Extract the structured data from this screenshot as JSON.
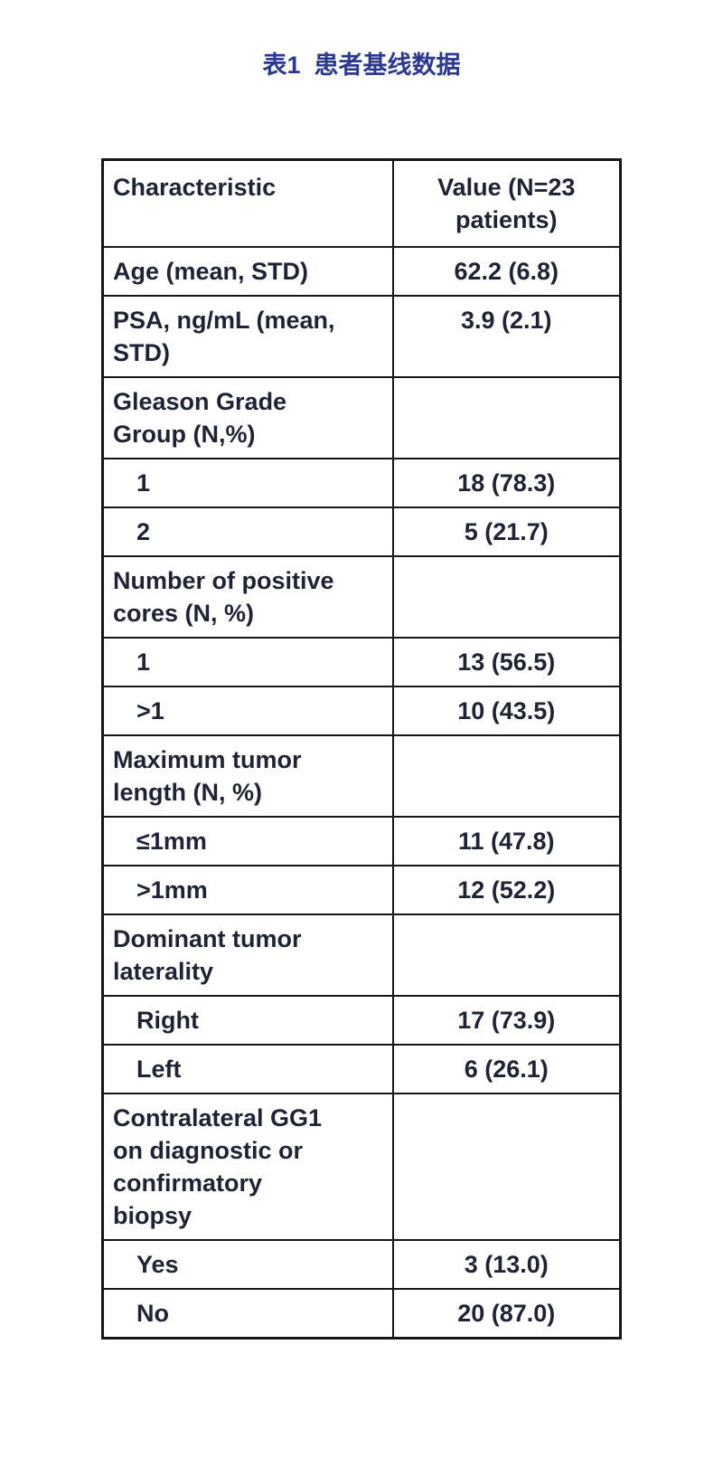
{
  "page": {
    "title": "表1  患者基线数据",
    "title_color": "#2b3a90",
    "background_color": "#ffffff",
    "text_color": "#1e2336",
    "border_color": "#161616"
  },
  "table": {
    "header": [
      "Characteristic",
      "Value (N=23 patients)"
    ],
    "rows": [
      {
        "label": "Age (mean, STD)",
        "value": "62.2 (6.8)"
      },
      {
        "label": "PSA, ng/mL (mean, STD)",
        "value": "3.9 (2.1)"
      },
      {
        "label": "Gleason Grade Group (N,%)",
        "value": ""
      },
      {
        "label": "1",
        "value": "18 (78.3)"
      },
      {
        "label": "2",
        "value": "5 (21.7)"
      },
      {
        "label": "Number of positive cores (N, %)",
        "value": ""
      },
      {
        "label": "1",
        "value": "13 (56.5)"
      },
      {
        "label": ">1",
        "value": "10 (43.5)"
      },
      {
        "label": "Maximum tumor length (N, %)",
        "value": ""
      },
      {
        "label": "≤1mm",
        "value": "11 (47.8)"
      },
      {
        "label": ">1mm",
        "value": "12 (52.2)"
      },
      {
        "label": "Dominant tumor laterality",
        "value": ""
      },
      {
        "label": "Right",
        "value": "17 (73.9)"
      },
      {
        "label": "Left",
        "value": "6 (26.1)"
      },
      {
        "label": "Contralateral GG1 on diagnostic or confirmatory biopsy",
        "value": ""
      },
      {
        "label": "Yes",
        "value": "3 (13.0)"
      },
      {
        "label": "No",
        "value": "20 (87.0)"
      }
    ]
  }
}
